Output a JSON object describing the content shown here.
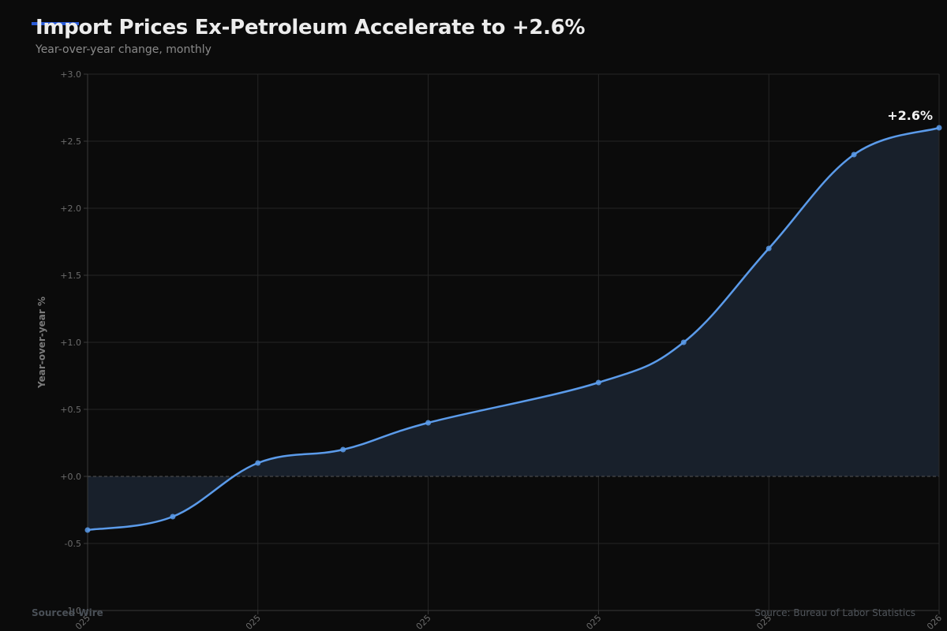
{
  "header": {
    "title": "Import Prices Ex-Petroleum Accelerate to +2.6%",
    "subtitle": "Year-over-year change, monthly"
  },
  "footer": {
    "brand": "Sourced Wire",
    "source": "Source: Bureau of Labor Statistics"
  },
  "colors": {
    "background": "#0b0b0b",
    "accent": "#2a5bd7",
    "line": "#5b9bea",
    "area_fill": "#18202b",
    "grid": "#262626",
    "zero_line": "#555555"
  },
  "chart_data": {
    "type": "area",
    "title": "Import Prices Ex-Petroleum Accelerate to +2.6%",
    "subtitle": "Year-over-year change, monthly",
    "xlabel": "",
    "ylabel": "Year-over-year %",
    "ylim": [
      -1.0,
      3.0
    ],
    "yticks": [
      "+3.0",
      "+2.5",
      "+2.0",
      "+1.5",
      "+1.0",
      "+0.5",
      "+0.0",
      "-0.5",
      "-1.0"
    ],
    "ytick_values": [
      3.0,
      2.5,
      2.0,
      1.5,
      1.0,
      0.5,
      0.0,
      -0.5,
      -1.0
    ],
    "grid": true,
    "baseline_dashed_at": 0,
    "x_slots": 11,
    "x_index": [
      0,
      1,
      2,
      3,
      4,
      6,
      7,
      8,
      9,
      10
    ],
    "x_tick_slots": [
      0,
      2,
      4,
      6,
      8,
      10
    ],
    "x_tick_labels_visible": [
      "025",
      "025",
      "025",
      "025",
      "025",
      "026"
    ],
    "series": [
      {
        "name": "Import prices ex-petroleum YoY %",
        "values": [
          -0.4,
          -0.3,
          0.1,
          0.2,
          0.4,
          0.7,
          1.0,
          1.7,
          2.4,
          2.6
        ]
      }
    ],
    "annotations": [
      {
        "text": "+2.6%",
        "at_index": 9
      }
    ]
  }
}
